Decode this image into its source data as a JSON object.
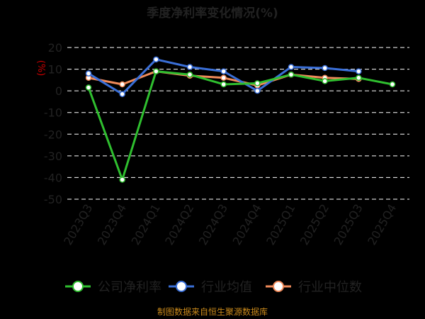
{
  "chart_data": {
    "type": "line",
    "title": "季度净利率变化情况(%)",
    "ylabel": "(%)",
    "xlabel": "",
    "source": "制图数据来自恒生聚源数据库",
    "categories": [
      "2023Q3",
      "2023Q4",
      "2024Q1",
      "2024Q2",
      "2024Q3",
      "2024Q4",
      "2025Q1",
      "2025Q2",
      "2025Q3",
      "2025Q4"
    ],
    "ylim": [
      -50,
      20
    ],
    "yticks": [
      20,
      10,
      0,
      -10,
      -20,
      -30,
      -40,
      -50
    ],
    "grid": true,
    "legend_position": "bottom",
    "series": [
      {
        "name": "公司净利率",
        "color": "#2fbf2f",
        "values": [
          1.5,
          -41,
          9,
          7.5,
          3,
          3.5,
          7.5,
          4.5,
          6,
          3
        ]
      },
      {
        "name": "行业均值",
        "color": "#3a6fd8",
        "values": [
          8,
          -1.5,
          14.5,
          11,
          9,
          0,
          11,
          10.5,
          9,
          null
        ]
      },
      {
        "name": "行业中位数",
        "color": "#f08a5a",
        "values": [
          6,
          3,
          9,
          7,
          6,
          2.5,
          7.5,
          6,
          5.5,
          null
        ]
      }
    ]
  }
}
